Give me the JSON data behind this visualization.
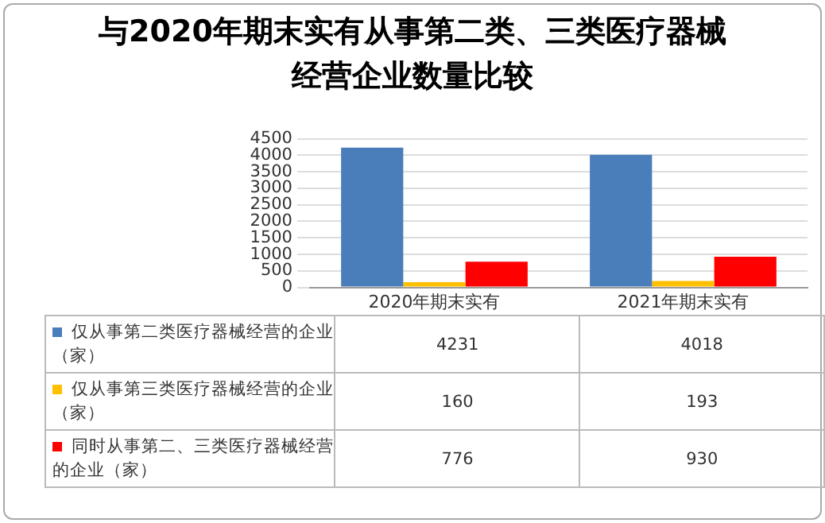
{
  "chart_data": {
    "type": "bar",
    "title": "与2020年期末实有从事第二类、三类医疗器械经营企业数量比较",
    "categories": [
      "2020年期末实有",
      "2021年期末实有"
    ],
    "series": [
      {
        "name": "仅从事第二类医疗器械经营的企业（家）",
        "color": "#4a7ebb",
        "values": [
          4231,
          4018
        ]
      },
      {
        "name": "仅从事第三类医疗器械经营的企业（家）",
        "color": "#ffc000",
        "values": [
          160,
          193
        ]
      },
      {
        "name": "同时从事第二、三类医疗器械经营的企业（家）",
        "color": "#ff0000",
        "values": [
          776,
          930
        ]
      }
    ],
    "ylim": [
      0,
      4500
    ],
    "yticks": [
      0,
      500,
      1000,
      1500,
      2000,
      2500,
      3000,
      3500,
      4000,
      4500
    ],
    "grid": "y",
    "legend": "bottom",
    "data_labels": true
  }
}
